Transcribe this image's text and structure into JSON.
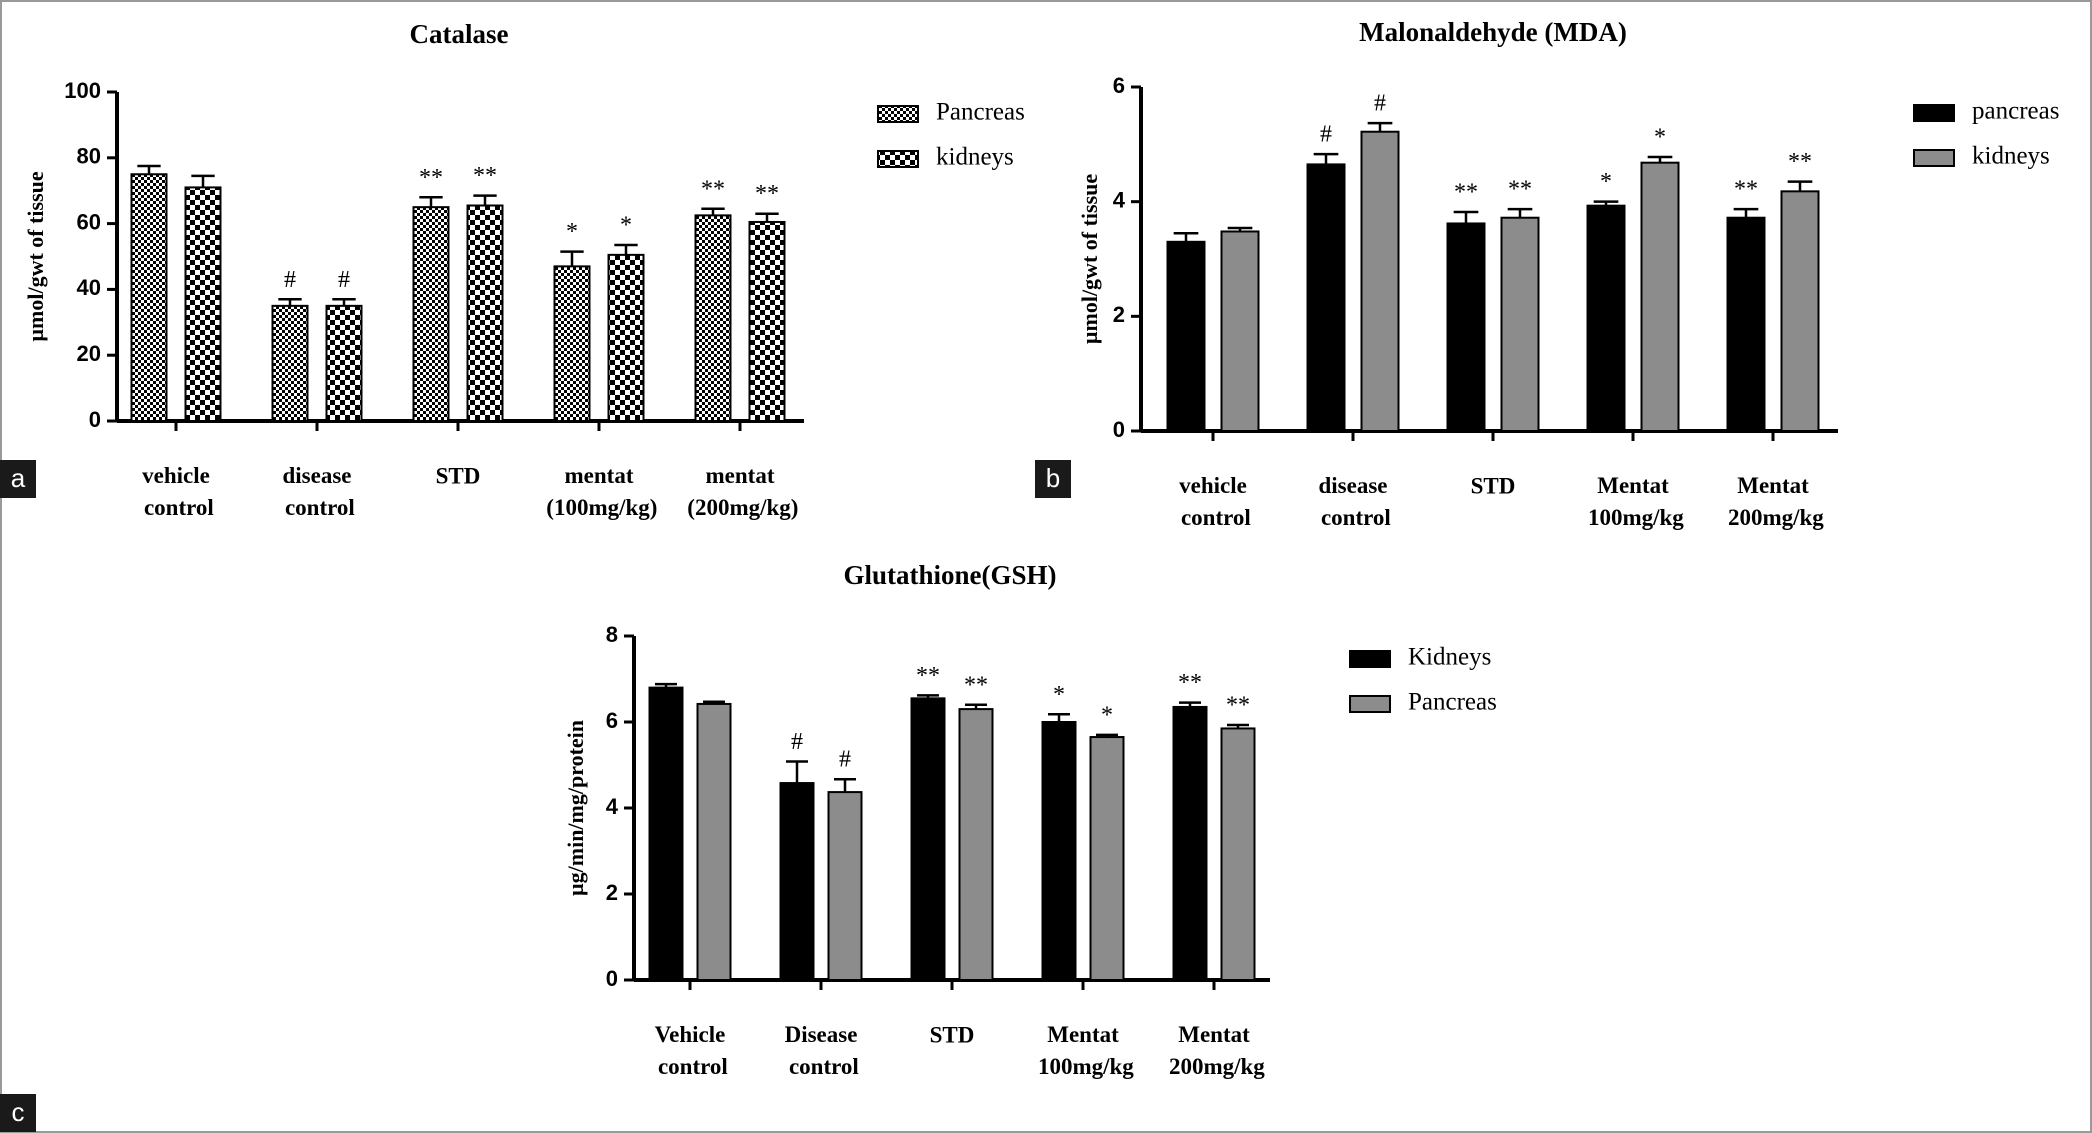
{
  "chart_data": [
    {
      "type": "bar",
      "title": "Catalase",
      "y_label": "µmol/gwt of tissue",
      "panel_label": "a",
      "categories": [
        "vehicle control",
        "disease control",
        "STD",
        "mentat (100mg/kg)",
        "mentat (200mg/kg)"
      ],
      "ylim": [
        0,
        100
      ],
      "yticks": [
        0,
        20,
        40,
        60,
        80,
        100
      ],
      "series": [
        {
          "name": "Pancreas",
          "pattern": "fine-check",
          "color": "#000000",
          "values": [
            75,
            35,
            65,
            47,
            62.5
          ],
          "errors": [
            2.5,
            2,
            3,
            4.5,
            2
          ],
          "annotations": [
            null,
            "#",
            "**",
            "*",
            "**"
          ]
        },
        {
          "name": "kidneys",
          "pattern": "coarse-check",
          "color": "#000000",
          "values": [
            71,
            35,
            65.5,
            50.5,
            60.5
          ],
          "errors": [
            3.5,
            2,
            3,
            3,
            2.5
          ],
          "annotations": [
            null,
            "#",
            "**",
            "*",
            "**"
          ]
        }
      ]
    },
    {
      "type": "bar",
      "title": "Malonaldehyde (MDA)",
      "y_label": "µmol/gwt of tissue",
      "panel_label": "b",
      "categories": [
        "vehicle control",
        "disease control",
        "STD",
        "Mentat 100mg/kg",
        "Mentat 200mg/kg"
      ],
      "ylim": [
        0,
        6
      ],
      "yticks": [
        0,
        2,
        4,
        6
      ],
      "series": [
        {
          "name": "pancreas",
          "color": "#000000",
          "values": [
            3.3,
            4.65,
            3.62,
            3.93,
            3.72
          ],
          "errors": [
            0.15,
            0.18,
            0.2,
            0.07,
            0.15
          ],
          "annotations": [
            null,
            "#",
            "**",
            "*",
            "**"
          ]
        },
        {
          "name": "kidneys",
          "color": "#8c8c8c",
          "values": [
            3.48,
            5.22,
            3.72,
            4.68,
            4.18
          ],
          "errors": [
            0.06,
            0.15,
            0.15,
            0.1,
            0.17
          ],
          "annotations": [
            null,
            "#",
            "**",
            "*",
            "**"
          ]
        }
      ]
    },
    {
      "type": "bar",
      "title": "Glutathione(GSH)",
      "y_label": "µg/min/mg/protein",
      "panel_label": "c",
      "categories": [
        "Vehicle control",
        "Disease control",
        "STD",
        "Mentat 100mg/kg",
        "Mentat 200mg/kg"
      ],
      "ylim": [
        0,
        8
      ],
      "yticks": [
        0,
        2,
        4,
        6,
        8
      ],
      "series": [
        {
          "name": "Kidneys",
          "color": "#000000",
          "values": [
            6.8,
            4.58,
            6.55,
            6.0,
            6.35
          ],
          "errors": [
            0.08,
            0.5,
            0.07,
            0.18,
            0.1
          ],
          "annotations": [
            null,
            "#",
            "**",
            "*",
            "**"
          ]
        },
        {
          "name": "Pancreas",
          "color": "#8c8c8c",
          "values": [
            6.42,
            4.37,
            6.3,
            5.65,
            5.85
          ],
          "errors": [
            0.05,
            0.3,
            0.1,
            0.05,
            0.08
          ],
          "annotations": [
            null,
            "#",
            "**",
            "*",
            "**"
          ]
        }
      ]
    }
  ]
}
